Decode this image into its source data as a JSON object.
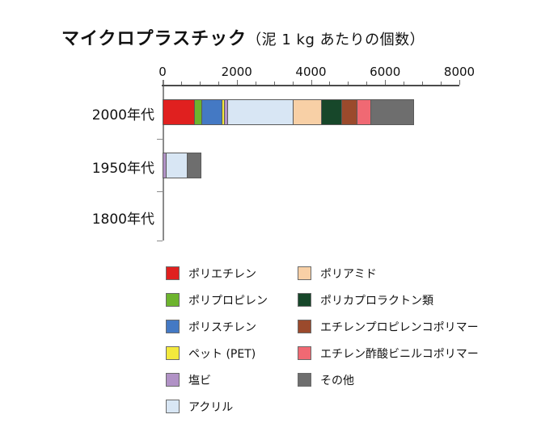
{
  "page": {
    "background": "#ffffff"
  },
  "title": {
    "main": "マイクロプラスチック",
    "sub": "（泥 1 kg あたりの個数）"
  },
  "chart_data": {
    "type": "bar",
    "variant": "horizontal-stacked",
    "title": "マイクロプラスチック",
    "subtitle": "（泥 1 kg あたりの個数）",
    "xlabel": "",
    "ylabel": "",
    "xlim": [
      0,
      8000
    ],
    "x_major_ticks": [
      0,
      2000,
      4000,
      6000,
      8000
    ],
    "x_minor_tick_interval": 500,
    "grid": false,
    "axis_position": "top",
    "categories": [
      "2000年代",
      "1950年代",
      "1800年代"
    ],
    "category_totals": [
      7000,
      1100,
      0
    ],
    "series": [
      {
        "name": "ポリエチレン",
        "color": "#e0201f",
        "values": [
          870,
          0,
          0
        ]
      },
      {
        "name": "ポリプロピレン",
        "color": "#6db42e",
        "values": [
          230,
          0,
          0
        ]
      },
      {
        "name": "ポリスチレン",
        "color": "#4479c4",
        "values": [
          560,
          0,
          0
        ]
      },
      {
        "name": "ペット (PET)",
        "color": "#f3e93d",
        "values": [
          90,
          0,
          0
        ]
      },
      {
        "name": "塩ビ",
        "color": "#b192c6",
        "values": [
          100,
          100,
          0
        ]
      },
      {
        "name": "アクリル",
        "color": "#d8e6f4",
        "values": [
          1780,
          600,
          0
        ]
      },
      {
        "name": "ポリアミド",
        "color": "#f8d0a6",
        "values": [
          790,
          0,
          0
        ]
      },
      {
        "name": "ポリカプロラクトン類",
        "color": "#17472a",
        "values": [
          580,
          0,
          0
        ]
      },
      {
        "name": "エチレンプロピレンコポリマー",
        "color": "#9b4a2c",
        "values": [
          420,
          0,
          0
        ]
      },
      {
        "name": "エチレン酢酸ビニルコポリマー",
        "color": "#f06973",
        "values": [
          410,
          0,
          0
        ]
      },
      {
        "name": "その他",
        "color": "#6e6e6e",
        "values": [
          1170,
          400,
          0
        ]
      }
    ],
    "legend_position": "bottom",
    "legend_columns": [
      [
        0,
        1,
        2,
        3,
        4,
        5
      ],
      [
        6,
        7,
        8,
        9,
        10
      ]
    ]
  }
}
